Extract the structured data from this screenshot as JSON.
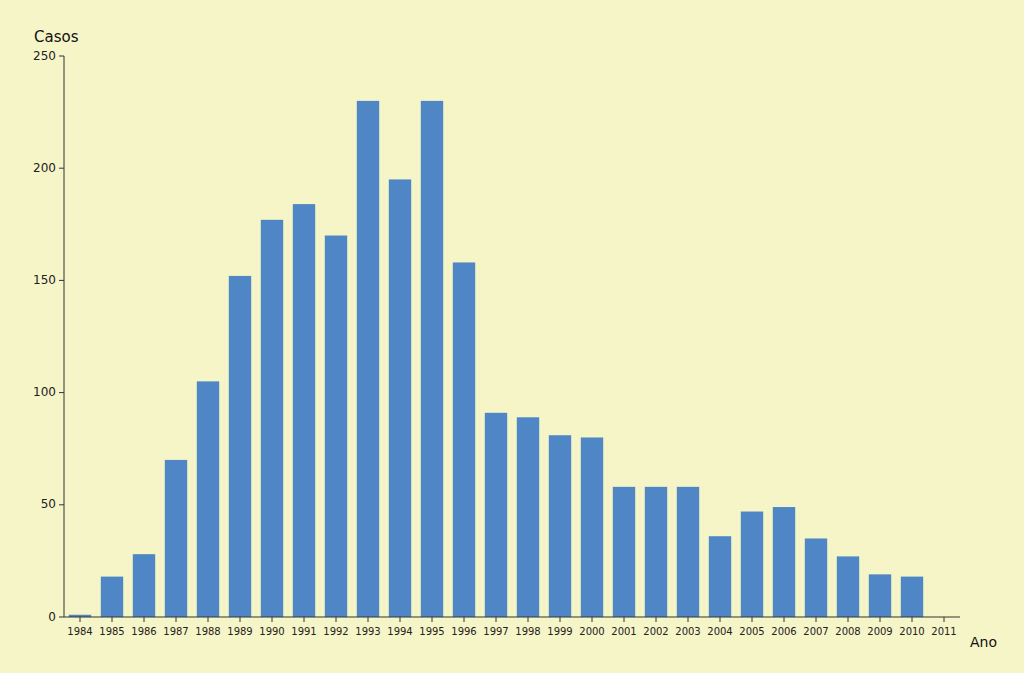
{
  "chart_data": {
    "type": "bar",
    "title": "Casos",
    "xlabel": "Ano",
    "categories": [
      "1984",
      "1985",
      "1986",
      "1987",
      "1988",
      "1989",
      "1990",
      "1991",
      "1992",
      "1993",
      "1994",
      "1995",
      "1996",
      "1997",
      "1998",
      "1999",
      "2000",
      "2001",
      "2002",
      "2003",
      "2004",
      "2005",
      "2006",
      "2007",
      "2008",
      "2009",
      "2010",
      "2011"
    ],
    "values": [
      1,
      18,
      28,
      70,
      105,
      152,
      177,
      184,
      170,
      230,
      195,
      230,
      158,
      91,
      89,
      81,
      80,
      58,
      58,
      58,
      36,
      47,
      49,
      35,
      27,
      19,
      18,
      0
    ],
    "color": "#4f86c6",
    "ylim": [
      0,
      250
    ],
    "yticks": [
      0,
      50,
      100,
      150,
      200,
      250
    ],
    "grid": false
  }
}
